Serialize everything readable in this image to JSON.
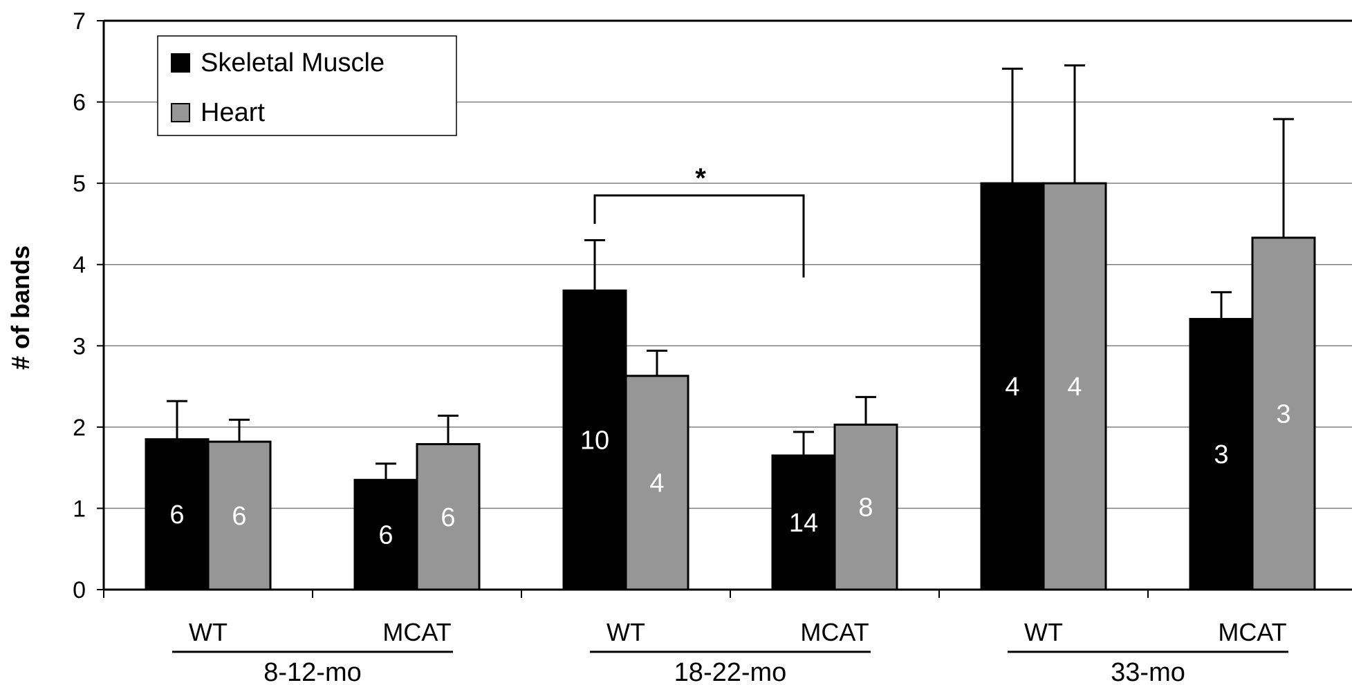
{
  "chart_data": {
    "type": "bar",
    "ylabel": "# of bands",
    "xlabel": "",
    "ylim": [
      0,
      7
    ],
    "yticks": [
      0,
      1,
      2,
      3,
      4,
      5,
      6,
      7
    ],
    "grid": "horizontal",
    "legend_placement": "top-left",
    "categories": [
      "WT",
      "MCAT",
      "WT",
      "MCAT",
      "WT",
      "MCAT"
    ],
    "groups": [
      {
        "label": "8-12-mo",
        "categories": [
          0,
          1
        ]
      },
      {
        "label": "18-22-mo",
        "categories": [
          2,
          3
        ]
      },
      {
        "label": "33-mo",
        "categories": [
          4,
          5
        ]
      }
    ],
    "series": [
      {
        "name": "Skeletal Muscle",
        "color": "#000000",
        "values": [
          1.85,
          1.35,
          3.68,
          1.65,
          5.0,
          3.33
        ],
        "errors": [
          0.47,
          0.2,
          0.62,
          0.29,
          1.41,
          0.33
        ],
        "n": [
          "6",
          "6",
          "10",
          "14",
          "4",
          "3"
        ]
      },
      {
        "name": "Heart",
        "color": "#969696",
        "values": [
          1.82,
          1.79,
          2.63,
          2.03,
          5.0,
          4.33
        ],
        "errors": [
          0.27,
          0.35,
          0.31,
          0.34,
          1.45,
          1.46
        ],
        "n": [
          "6",
          "6",
          "4",
          "8",
          "4",
          "3"
        ]
      }
    ],
    "annotations": [
      {
        "text": "*",
        "between": [
          2,
          3
        ],
        "series": 0
      }
    ]
  }
}
